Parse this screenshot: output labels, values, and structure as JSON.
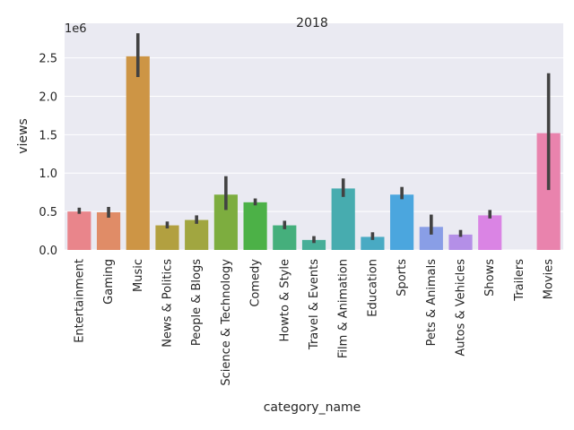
{
  "chart_data": {
    "type": "bar",
    "title": "2018",
    "xlabel": "category_name",
    "ylabel": "views",
    "y_offset_label": "1e6",
    "y_multiplier": 1000000,
    "ylim": [
      0,
      2.95
    ],
    "yticks": [
      0.0,
      0.5,
      1.0,
      1.5,
      2.0,
      2.5
    ],
    "ytick_labels": [
      "0.0",
      "0.5",
      "1.0",
      "1.5",
      "2.0",
      "2.5"
    ],
    "grid": true,
    "legend": "none",
    "categories": [
      "Entertainment",
      "Gaming",
      "Music",
      "News & Politics",
      "People & Blogs",
      "Science & Technology",
      "Comedy",
      "Howto & Style",
      "Travel & Events",
      "Film & Animation",
      "Education",
      "Sports",
      "Pets & Animals",
      "Autos & Vehicles",
      "Shows",
      "Trailers",
      "Movies"
    ],
    "values": [
      0.5,
      0.49,
      2.52,
      0.32,
      0.39,
      0.72,
      0.62,
      0.32,
      0.13,
      0.8,
      0.17,
      0.72,
      0.3,
      0.2,
      0.45,
      0.0,
      1.52
    ],
    "ci_low": [
      0.47,
      0.42,
      2.25,
      0.28,
      0.34,
      0.52,
      0.58,
      0.27,
      0.09,
      0.69,
      0.13,
      0.66,
      0.2,
      0.17,
      0.41,
      0.0,
      0.78
    ],
    "ci_high": [
      0.55,
      0.56,
      2.82,
      0.37,
      0.45,
      0.96,
      0.67,
      0.38,
      0.18,
      0.93,
      0.23,
      0.82,
      0.46,
      0.26,
      0.52,
      0.0,
      2.3
    ],
    "colors": [
      "#e9858b",
      "#e08c67",
      "#cd9545",
      "#b2a040",
      "#a1a640",
      "#7dad3f",
      "#4cb147",
      "#45af7c",
      "#47ae98",
      "#47acaf",
      "#49aac3",
      "#4ba6de",
      "#899ee6",
      "#b48fe7",
      "#da84e4",
      "#e37dcc",
      "#e983ad"
    ]
  }
}
